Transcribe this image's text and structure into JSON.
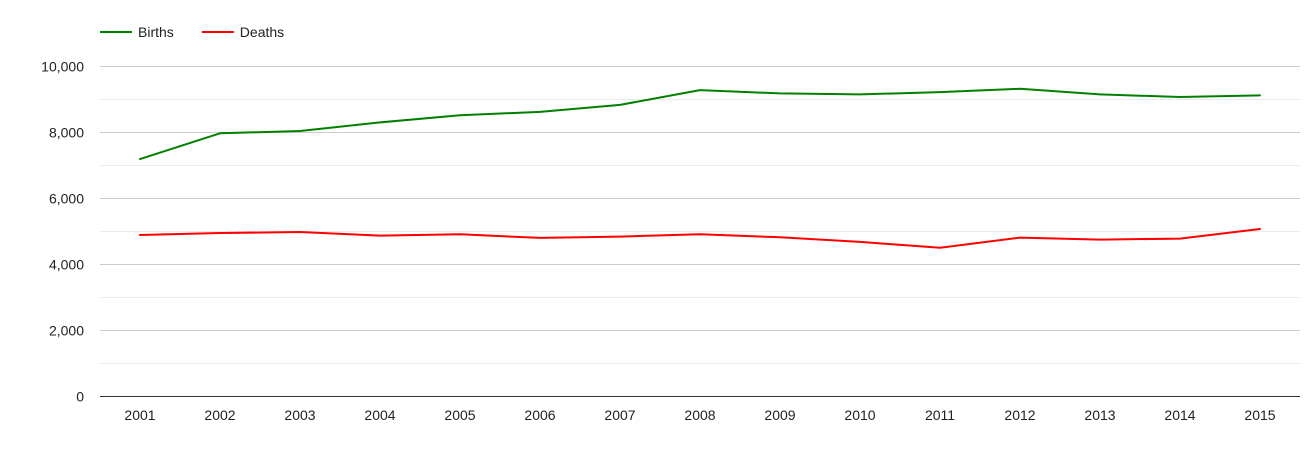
{
  "chart_data": {
    "type": "line",
    "title": "",
    "xlabel": "",
    "ylabel": "",
    "categories": [
      "2001",
      "2002",
      "2003",
      "2004",
      "2005",
      "2006",
      "2007",
      "2008",
      "2009",
      "2010",
      "2011",
      "2012",
      "2013",
      "2014",
      "2015"
    ],
    "series": [
      {
        "name": "Births",
        "color": "#008000",
        "values": [
          7180,
          7960,
          8030,
          8290,
          8510,
          8610,
          8820,
          9270,
          9170,
          9140,
          9210,
          9310,
          9140,
          9060,
          9110
        ]
      },
      {
        "name": "Deaths",
        "color": "#ff0000",
        "values": [
          4880,
          4940,
          4970,
          4860,
          4900,
          4790,
          4830,
          4900,
          4810,
          4670,
          4490,
          4800,
          4740,
          4770,
          5060
        ]
      }
    ],
    "ylim": [
      0,
      10000
    ],
    "yticks": [
      0,
      2000,
      4000,
      6000,
      8000,
      10000
    ],
    "ytick_labels": [
      "0",
      "2,000",
      "4,000",
      "6,000",
      "8,000",
      "10,000"
    ],
    "grid": true,
    "minor_grid": true,
    "legend_position": "top-left"
  }
}
